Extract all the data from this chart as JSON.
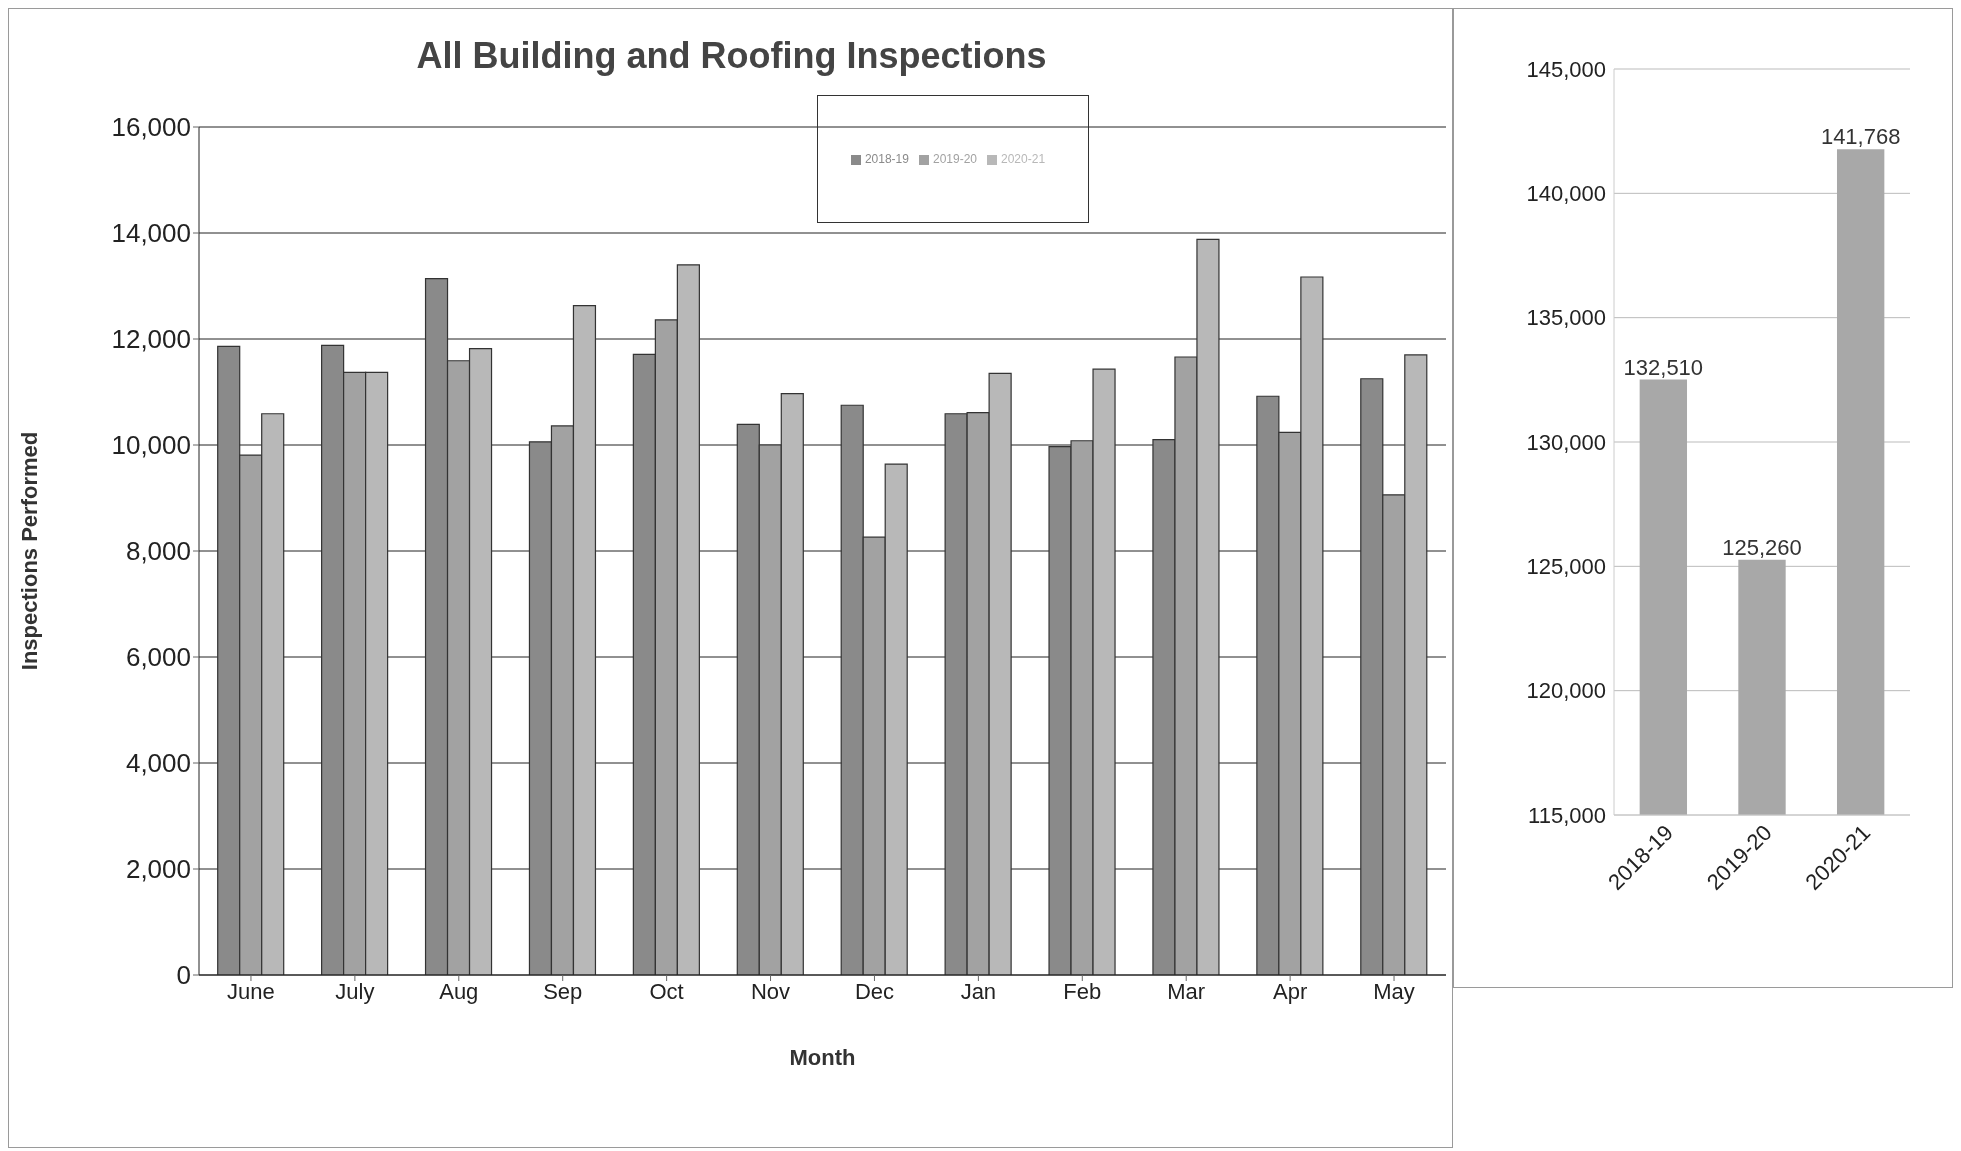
{
  "chart_data": [
    {
      "type": "bar",
      "title": "All Building and Roofing Inspections",
      "xlabel": "Month",
      "ylabel": "Inspections Performed",
      "categories": [
        "June",
        "July",
        "Aug",
        "Sep",
        "Oct",
        "Nov",
        "Dec",
        "Jan",
        "Feb",
        "Mar",
        "Apr",
        "May"
      ],
      "series": [
        {
          "name": "2018-19",
          "color": "#8a8a8a",
          "values": [
            11860,
            11880,
            13140,
            10060,
            11710,
            10390,
            10750,
            10590,
            9970,
            10100,
            10920,
            11250
          ]
        },
        {
          "name": "2019-20",
          "color": "#a2a2a2",
          "values": [
            9810,
            11370,
            11590,
            10360,
            12360,
            10000,
            8260,
            10610,
            10080,
            11660,
            10240,
            9060
          ]
        },
        {
          "name": "2020-21",
          "color": "#b8b8b8",
          "values": [
            10590,
            11370,
            11820,
            12630,
            13400,
            10970,
            9640,
            11350,
            11430,
            13880,
            13170,
            11700
          ]
        }
      ],
      "ylim": [
        0,
        16000
      ],
      "yticks": [
        0,
        {
          "value": 2000,
          "label": "2,000"
        },
        {
          "value": 4000,
          "label": "4,000"
        },
        {
          "value": 6000,
          "label": "6,000"
        },
        {
          "value": 8000,
          "label": "8,000"
        },
        {
          "value": 10000,
          "label": "10,000"
        },
        {
          "value": 12000,
          "label": "12,000"
        },
        {
          "value": 14000,
          "label": "14,000"
        },
        {
          "value": 16000,
          "label": "16,000"
        }
      ],
      "grid": "y",
      "legend": "top"
    },
    {
      "type": "bar",
      "categories": [
        "2018-19",
        "2019-20",
        "2020-21"
      ],
      "values": [
        132510,
        125260,
        141768
      ],
      "value_labels": [
        "132,510",
        "125,260",
        "141,768"
      ],
      "color": "#a8a8a8",
      "ylim": [
        115000,
        145000
      ],
      "yticks": [
        {
          "value": 115000,
          "label": "115,000"
        },
        {
          "value": 120000,
          "label": "120,000"
        },
        {
          "value": 125000,
          "label": "125,000"
        },
        {
          "value": 130000,
          "label": "130,000"
        },
        {
          "value": 135000,
          "label": "135,000"
        },
        {
          "value": 140000,
          "label": "140,000"
        },
        {
          "value": 145000,
          "label": "145,000"
        }
      ],
      "grid": "y"
    }
  ]
}
